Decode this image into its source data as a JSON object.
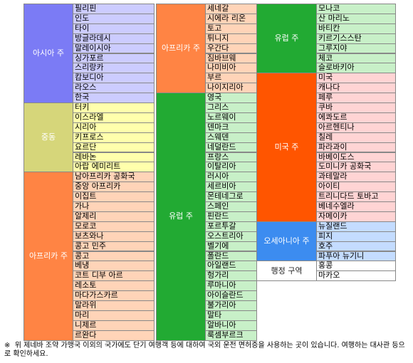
{
  "columns": [
    {
      "groups": [
        {
          "region": "아시아 주",
          "color": "#7b7bf5",
          "row_color": "#ccccff",
          "countries": [
            "필리핀",
            "인도",
            "타이",
            "방글라데시",
            "말레이시아",
            "싱가포르",
            "스리랑카",
            "캄보디아",
            "라오스",
            "한국"
          ]
        },
        {
          "region": "중동",
          "color": "#d6d67a",
          "row_color": "#ffffac",
          "countries": [
            "터키",
            "이스라엘",
            "시리아",
            "키프로스",
            "요르단",
            "레바논",
            "아랍 에미리트"
          ]
        },
        {
          "region": "아프리카 주",
          "color": "#ff8444",
          "row_color": "#ffd4b8",
          "countries": [
            "남아프리카 공화국",
            "중앙 아프리카",
            "이집트",
            "가나",
            "알제리",
            "모로코",
            "보츠와나",
            "콩고 민주",
            "콩고",
            "베냉",
            "코트 디부 아르",
            "레소토",
            "마다가스카르",
            "말라위",
            "마리",
            "니제르",
            "르완다"
          ]
        }
      ]
    },
    {
      "groups": [
        {
          "region": "아프리카 주",
          "color": "#ff8444",
          "row_color": "#ffd4b8",
          "countries": [
            "세네갈",
            "시에라 리온",
            "토고",
            "튀니지",
            "우간다",
            "짐바브웨",
            "나미비아",
            "부르",
            "나이지리아"
          ]
        },
        {
          "region": "유럽 주",
          "color": "#22aa33",
          "row_color": "#c8f0c8",
          "countries": [
            "영국",
            "그리스",
            "노르웨이",
            "덴마크",
            "스웨덴",
            "네덜란드",
            "프랑스",
            "이탈리아",
            "러시아",
            "세르비아",
            "몬테네그로",
            "스페인",
            "핀란드",
            "포르투갈",
            "오스트리아",
            "벨기에",
            "폴란드",
            "아일랜드",
            "헝가리",
            "루마니아",
            "아이슬란드",
            "불가리아",
            "말타",
            "알바니아",
            "룩셈부르크"
          ]
        }
      ]
    },
    {
      "groups": [
        {
          "region": "유럽 주",
          "color": "#22aa33",
          "row_color": "#c8f0c8",
          "countries": [
            "모나코",
            "산 마리노",
            "바티칸",
            "키르기스스탄",
            "그루지야",
            "체코",
            "슬로바키아"
          ]
        },
        {
          "region": "미국 주",
          "color": "#ff5500",
          "row_color": "#ffd4d4",
          "countries": [
            "미국",
            "캐나다",
            "페루",
            "쿠바",
            "에콰도르",
            "아르헨티나",
            "칠레",
            "파라과이",
            "바베이도스",
            "도미니카 공화국",
            "과테말라",
            "아이티",
            "트리니다드 토바고",
            "베네수엘라",
            "자메이카"
          ]
        },
        {
          "region": "오세아니아 주",
          "color": "#3c8cf0",
          "row_color": "#c4dcff",
          "countries": [
            "뉴질랜드",
            "피지",
            "호주",
            "파푸아 뉴기니"
          ]
        },
        {
          "region": "행정 구역",
          "color": "#ffffff",
          "row_color": "#ffffff",
          "countries": [
            "홍콩",
            "마카오"
          ]
        }
      ]
    }
  ],
  "footnote": {
    "mark": "※",
    "text": "위 제네바 조약 가맹국 이외의 국가에도 단기 여행객 등에 대하여 국외 운전 면허증을 사용하는 곳이 있습니다. 여행하는 대사관 등으로 확인하세요."
  }
}
